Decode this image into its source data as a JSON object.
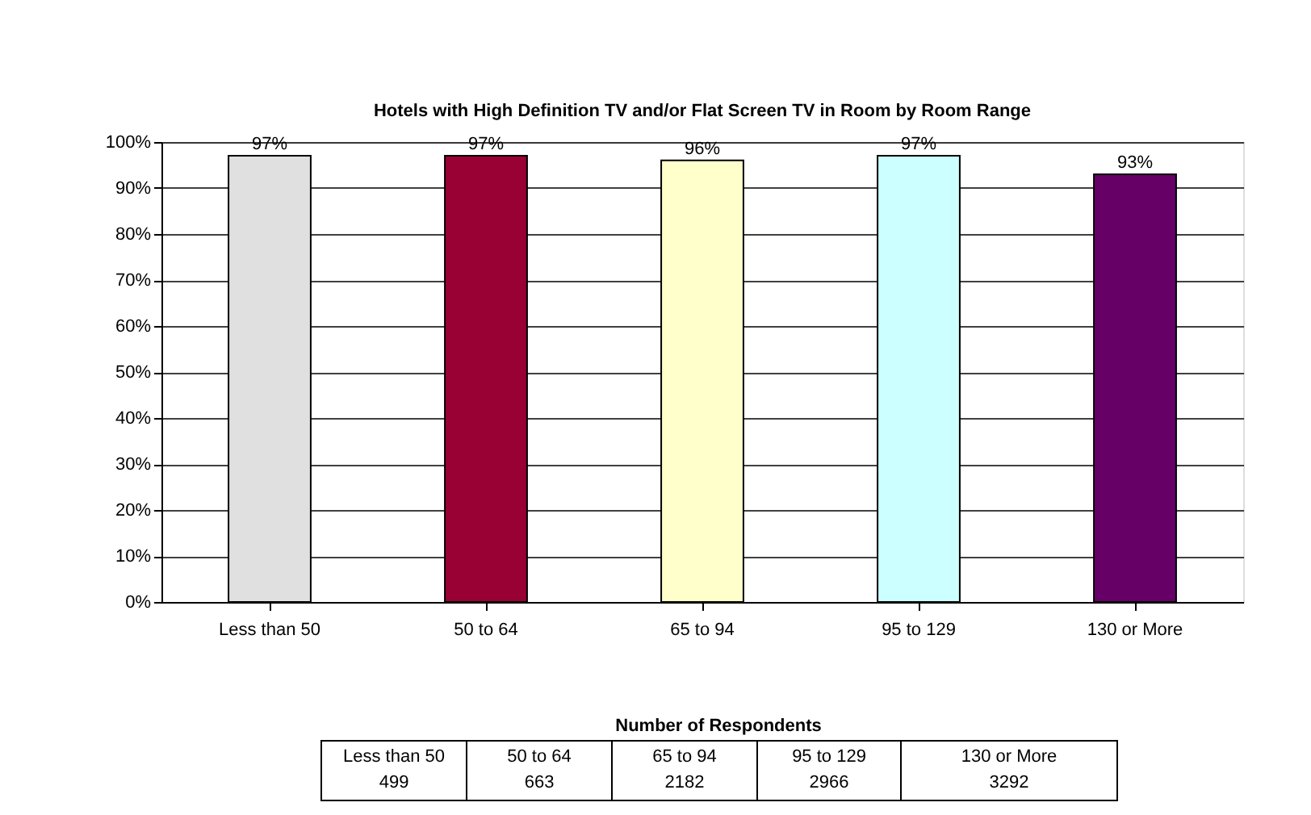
{
  "chart_data": {
    "type": "bar",
    "title": "Hotels with High Definition TV and/or Flat Screen TV in Room by Room Range",
    "categories": [
      "Less than 50",
      "50 to 64",
      "65 to 94",
      "95 to 129",
      "130 or More"
    ],
    "values": [
      97,
      97,
      96,
      97,
      93
    ],
    "colors": [
      "#e0e0e0",
      "#990033",
      "#ffffcc",
      "#ccffff",
      "#660066"
    ],
    "value_labels": [
      "97%",
      "97%",
      "96%",
      "97%",
      "93%"
    ],
    "ylim": [
      0,
      100
    ],
    "yticks": [
      {
        "value": 0,
        "label": "0%"
      },
      {
        "value": 10,
        "label": "10%"
      },
      {
        "value": 20,
        "label": "20%"
      },
      {
        "value": 30,
        "label": "30%"
      },
      {
        "value": 40,
        "label": "40%"
      },
      {
        "value": 50,
        "label": "50%"
      },
      {
        "value": 60,
        "label": "60%"
      },
      {
        "value": 70,
        "label": "70%"
      },
      {
        "value": 80,
        "label": "80%"
      },
      {
        "value": 90,
        "label": "90%"
      },
      {
        "value": 100,
        "label": "100%"
      }
    ],
    "grid": "y",
    "legend": false,
    "annotations": [
      "Number of Respondents",
      "Less than 50\n499",
      "50 to 64\n663",
      "65 to 94\n2182",
      "95 to 129\n2966",
      "130 or More\n3292"
    ]
  }
}
